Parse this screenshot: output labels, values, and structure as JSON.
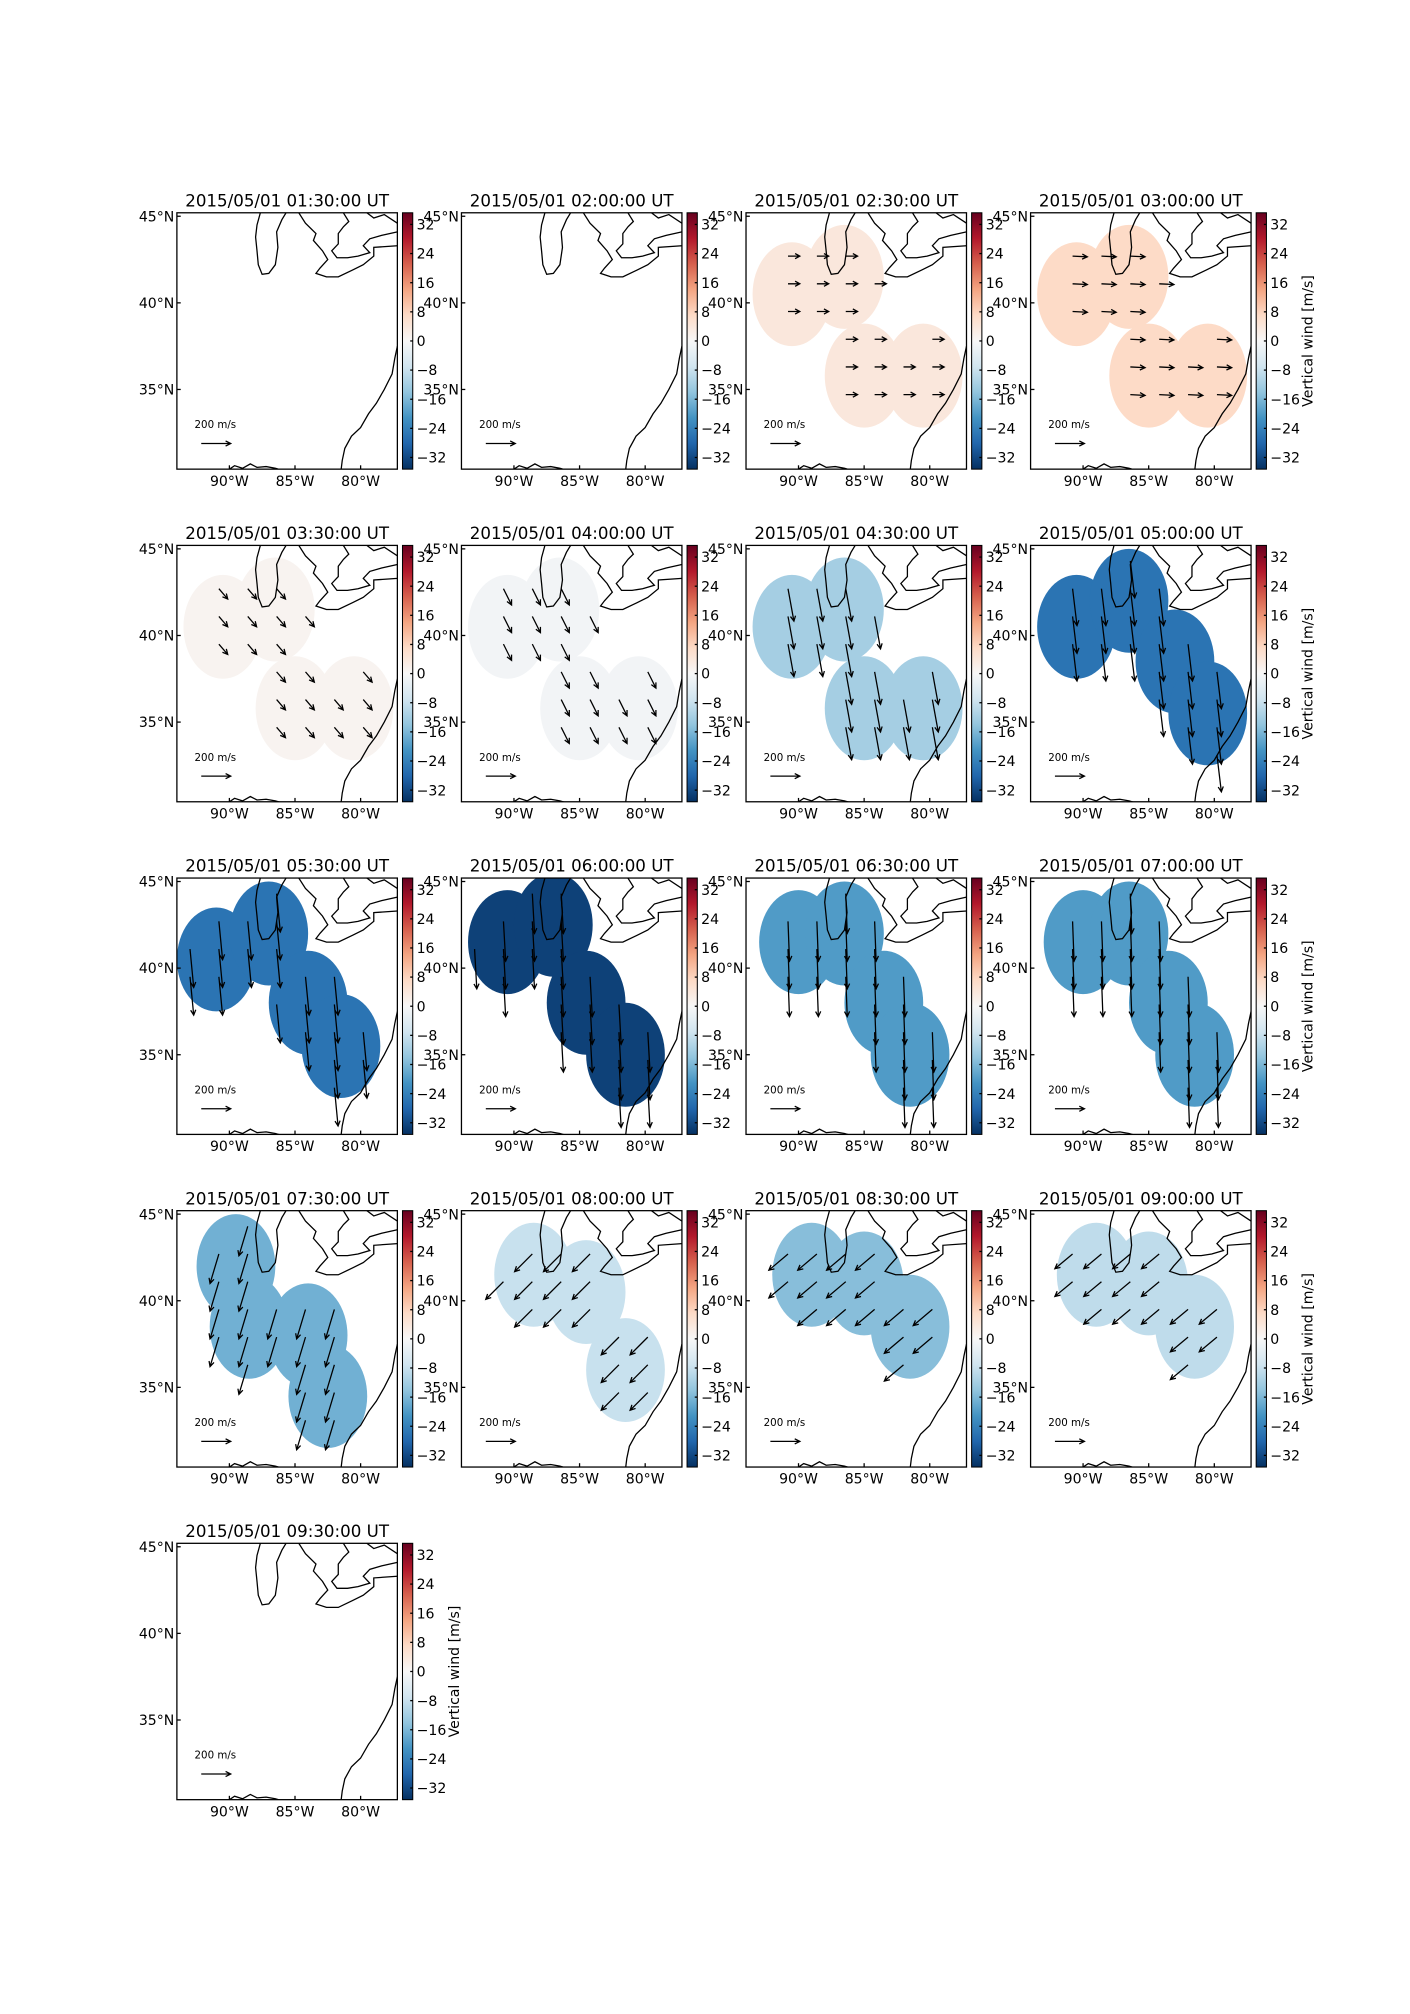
{
  "axes": {
    "lon_lim": [
      -94,
      -77.2
    ],
    "lat_lim": [
      30.4,
      45.2
    ],
    "lon_ticks": [
      {
        "value": -90,
        "label": "90°W"
      },
      {
        "value": -85,
        "label": "85°W"
      },
      {
        "value": -80,
        "label": "80°W"
      }
    ],
    "lat_ticks": [
      {
        "value": 45,
        "label": "45°N"
      },
      {
        "value": 40,
        "label": "40°N"
      },
      {
        "value": 35,
        "label": "35°N"
      }
    ]
  },
  "colorbar": {
    "colormap": "RdBu_r",
    "lim": [
      -35.2,
      35.2
    ],
    "ticks": [
      32,
      24,
      16,
      8,
      0,
      {
        "value": -8,
        "label": "−8"
      },
      {
        "value": -16,
        "label": "−16"
      },
      {
        "value": -24,
        "label": "−24"
      },
      {
        "value": -32,
        "label": "−32"
      }
    ],
    "label": "Vertical wind [m/s]"
  },
  "quiver_key": {
    "value": 200,
    "label": "200 m/s"
  },
  "coverage_radius_deg": 3,
  "chart_data": [
    {
      "type": "map",
      "title": "2015/05/01 01:30:00 UT",
      "vertical_wind": null
    },
    {
      "type": "map",
      "title": "2015/05/01 02:00:00 UT",
      "vertical_wind": null
    },
    {
      "type": "map",
      "title": "2015/05/01 02:30:00 UT",
      "vertical_wind": 4,
      "wind_u": 80,
      "wind_v": 0,
      "coverage": [
        [
          -90.5,
          40.5
        ],
        [
          -86.5,
          41.5
        ],
        [
          -85,
          35.8
        ],
        [
          -80.5,
          35.8
        ]
      ]
    },
    {
      "type": "map",
      "title": "2015/05/01 03:00:00 UT",
      "vertical_wind": 7,
      "wind_u": 100,
      "wind_v": -5,
      "coverage": [
        [
          -90.5,
          40.5
        ],
        [
          -86.5,
          41.5
        ],
        [
          -85,
          35.8
        ],
        [
          -80.5,
          35.8
        ]
      ]
    },
    {
      "type": "map",
      "title": "2015/05/01 03:30:00 UT",
      "vertical_wind": 1,
      "wind_u": 60,
      "wind_v": -70,
      "coverage": [
        [
          -90.5,
          40.5
        ],
        [
          -86.5,
          41.5
        ],
        [
          -85,
          35.8
        ],
        [
          -80.5,
          35.8
        ]
      ]
    },
    {
      "type": "map",
      "title": "2015/05/01 04:00:00 UT",
      "vertical_wind": -1,
      "wind_u": 55,
      "wind_v": -110,
      "coverage": [
        [
          -90.5,
          40.5
        ],
        [
          -86.5,
          41.5
        ],
        [
          -85,
          35.8
        ],
        [
          -80.5,
          35.8
        ]
      ]
    },
    {
      "type": "map",
      "title": "2015/05/01 04:30:00 UT",
      "vertical_wind": -12,
      "wind_u": 40,
      "wind_v": -220,
      "coverage": [
        [
          -90.5,
          40.5
        ],
        [
          -86.5,
          41.5
        ],
        [
          -85,
          35.8
        ],
        [
          -80.5,
          35.8
        ]
      ]
    },
    {
      "type": "map",
      "title": "2015/05/01 05:00:00 UT",
      "vertical_wind": -26,
      "wind_u": 30,
      "wind_v": -250,
      "coverage": [
        [
          -90.5,
          40.5
        ],
        [
          -86.5,
          42
        ],
        [
          -83,
          38.5
        ],
        [
          -80.5,
          35.5
        ]
      ]
    },
    {
      "type": "map",
      "title": "2015/05/01 05:30:00 UT",
      "vertical_wind": -26,
      "wind_u": 25,
      "wind_v": -260,
      "coverage": [
        [
          -91,
          40.5
        ],
        [
          -87,
          42
        ],
        [
          -84,
          38
        ],
        [
          -81.5,
          35.5
        ]
      ]
    },
    {
      "type": "map",
      "title": "2015/05/01 06:00:00 UT",
      "vertical_wind": -33,
      "wind_u": 15,
      "wind_v": -270,
      "coverage": [
        [
          -90.5,
          41.5
        ],
        [
          -87,
          42.5
        ],
        [
          -84.5,
          38
        ],
        [
          -81.5,
          35
        ]
      ]
    },
    {
      "type": "map",
      "title": "2015/05/01 06:30:00 UT",
      "vertical_wind": -20,
      "wind_u": 10,
      "wind_v": -270,
      "coverage": [
        [
          -90,
          41.5
        ],
        [
          -86.5,
          42
        ],
        [
          -83.5,
          38
        ],
        [
          -81.5,
          35
        ]
      ]
    },
    {
      "type": "map",
      "title": "2015/05/01 07:00:00 UT",
      "vertical_wind": -20,
      "wind_u": 10,
      "wind_v": -270,
      "coverage": [
        [
          -90,
          41.5
        ],
        [
          -86.5,
          42
        ],
        [
          -83.5,
          38
        ],
        [
          -81.5,
          35
        ]
      ]
    },
    {
      "type": "map",
      "title": "2015/05/01 07:30:00 UT",
      "vertical_wind": -17,
      "wind_u": -60,
      "wind_v": -200,
      "coverage": [
        [
          -89.5,
          42
        ],
        [
          -88.5,
          38.5
        ],
        [
          -84,
          38
        ],
        [
          -82.5,
          34.5
        ]
      ]
    },
    {
      "type": "map",
      "title": "2015/05/01 08:00:00 UT",
      "vertical_wind": -8,
      "wind_u": -120,
      "wind_v": -120,
      "coverage": [
        [
          -88.5,
          41.5
        ],
        [
          -84.5,
          40.5
        ],
        [
          -81.5,
          36
        ]
      ]
    },
    {
      "type": "map",
      "title": "2015/05/01 08:30:00 UT",
      "vertical_wind": -15,
      "wind_u": -130,
      "wind_v": -110,
      "coverage": [
        [
          -89,
          41.5
        ],
        [
          -85,
          41
        ],
        [
          -81.5,
          38.5
        ]
      ]
    },
    {
      "type": "map",
      "title": "2015/05/01 09:00:00 UT",
      "vertical_wind": -9,
      "wind_u": -120,
      "wind_v": -100,
      "coverage": [
        [
          -89,
          41.5
        ],
        [
          -85,
          41
        ],
        [
          -81.5,
          38.5
        ]
      ]
    },
    {
      "type": "map",
      "title": "2015/05/01 09:30:00 UT",
      "vertical_wind": null
    }
  ]
}
